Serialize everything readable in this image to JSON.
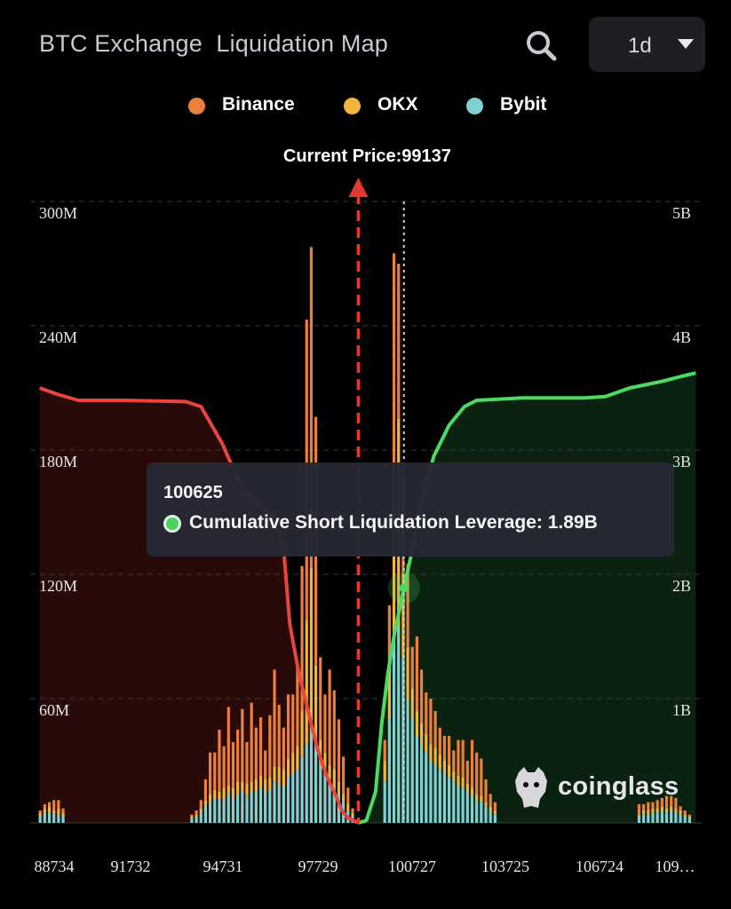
{
  "header": {
    "title": "BTC Exchange  Liquidation Map",
    "time_range": "1d"
  },
  "icons": {
    "search": "search-icon",
    "dropdown": "chevron-down-icon",
    "watermark_logo": "coinglass-logo-icon"
  },
  "legend": [
    {
      "label": "Binance",
      "color": "#ec7f3c"
    },
    {
      "label": "OKX",
      "color": "#f2b63c"
    },
    {
      "label": "Bybit",
      "color": "#7fd1d4"
    }
  ],
  "current_price_label": "Current Price:99137",
  "tooltip": {
    "title": "100625",
    "label": "Cumulative Short Liquidation Leverage: 1.89B",
    "color": "#4cd964"
  },
  "watermark": "coinglass",
  "chart_data": {
    "type": "bar",
    "title": "BTC Exchange  Liquidation Map",
    "x_tick_labels": [
      "88734",
      "91732",
      "94731",
      "97729",
      "100727",
      "103725",
      "106724",
      "109…"
    ],
    "xlim": [
      88600,
      110200
    ],
    "y_left": {
      "ticks": [
        "60M",
        "120M",
        "180M",
        "240M",
        "300M"
      ],
      "range": [
        0,
        300000000
      ]
    },
    "y_right": {
      "ticks": [
        "1B",
        "2B",
        "3B",
        "4B",
        "5B"
      ],
      "range": [
        0,
        5000000000
      ]
    },
    "grid": "horizontal dashed",
    "current_price": 99137,
    "hover_price": 100625,
    "bars": {
      "series_order": [
        "Bybit",
        "OKX",
        "Binance"
      ],
      "points": [
        [
          88750,
          3,
          2,
          1
        ],
        [
          88900,
          5,
          2,
          2
        ],
        [
          89050,
          5,
          3,
          2
        ],
        [
          89200,
          4,
          2,
          5
        ],
        [
          89350,
          4,
          3,
          4
        ],
        [
          89500,
          3,
          2,
          2
        ],
        [
          93700,
          2,
          1,
          1
        ],
        [
          93850,
          3,
          1,
          2
        ],
        [
          94000,
          5,
          2,
          4
        ],
        [
          94150,
          8,
          3,
          10
        ],
        [
          94300,
          10,
          4,
          20
        ],
        [
          94450,
          12,
          4,
          18
        ],
        [
          94600,
          11,
          4,
          30
        ],
        [
          94750,
          12,
          5,
          20
        ],
        [
          94900,
          14,
          4,
          38
        ],
        [
          95050,
          12,
          5,
          22
        ],
        [
          95200,
          14,
          6,
          25
        ],
        [
          95350,
          15,
          5,
          35
        ],
        [
          95500,
          13,
          6,
          20
        ],
        [
          95650,
          15,
          5,
          38
        ],
        [
          95800,
          15,
          6,
          25
        ],
        [
          95950,
          17,
          6,
          28
        ],
        [
          96100,
          15,
          6,
          14
        ],
        [
          96250,
          16,
          6,
          30
        ],
        [
          96400,
          20,
          7,
          47
        ],
        [
          96550,
          19,
          8,
          30
        ],
        [
          96700,
          18,
          8,
          20
        ],
        [
          96850,
          22,
          9,
          31
        ],
        [
          97000,
          24,
          10,
          28
        ],
        [
          97150,
          26,
          11,
          38
        ],
        [
          97300,
          32,
          22,
          70
        ],
        [
          97450,
          38,
          60,
          145
        ],
        [
          97600,
          48,
          75,
          155
        ],
        [
          97750,
          40,
          36,
          120
        ],
        [
          97900,
          28,
          12,
          40
        ],
        [
          98050,
          24,
          10,
          28
        ],
        [
          98200,
          20,
          8,
          46
        ],
        [
          98350,
          18,
          8,
          38
        ],
        [
          98500,
          14,
          6,
          30
        ],
        [
          98650,
          10,
          4,
          18
        ],
        [
          98800,
          6,
          3,
          8
        ],
        [
          98950,
          3,
          2,
          2
        ],
        [
          100000,
          20,
          10,
          10
        ],
        [
          100150,
          50,
          25,
          30
        ],
        [
          100300,
          90,
          70,
          115
        ],
        [
          100450,
          95,
          100,
          75
        ],
        [
          100600,
          80,
          40,
          48
        ],
        [
          100750,
          60,
          25,
          40
        ],
        [
          100900,
          50,
          15,
          20
        ],
        [
          101050,
          42,
          12,
          36
        ],
        [
          101200,
          38,
          10,
          26
        ],
        [
          101350,
          34,
          9,
          20
        ],
        [
          101500,
          30,
          8,
          22
        ],
        [
          101650,
          28,
          8,
          18
        ],
        [
          101800,
          26,
          7,
          13
        ],
        [
          101950,
          24,
          6,
          12
        ],
        [
          102100,
          22,
          6,
          14
        ],
        [
          102250,
          20,
          5,
          10
        ],
        [
          102400,
          18,
          5,
          17
        ],
        [
          102550,
          17,
          5,
          18
        ],
        [
          102700,
          15,
          4,
          11
        ],
        [
          102850,
          13,
          4,
          23
        ],
        [
          103000,
          11,
          3,
          20
        ],
        [
          103150,
          10,
          3,
          18
        ],
        [
          103300,
          8,
          2,
          11
        ],
        [
          103450,
          6,
          2,
          6
        ],
        [
          103600,
          4,
          2,
          4
        ],
        [
          108300,
          3,
          1,
          5
        ],
        [
          108450,
          4,
          2,
          3
        ],
        [
          108600,
          4,
          2,
          4
        ],
        [
          108750,
          5,
          2,
          3
        ],
        [
          108900,
          5,
          2,
          4
        ],
        [
          109050,
          6,
          2,
          4
        ],
        [
          109200,
          5,
          2,
          6
        ],
        [
          109350,
          6,
          2,
          5
        ],
        [
          109500,
          5,
          2,
          5
        ],
        [
          109650,
          4,
          2,
          2
        ],
        [
          109800,
          3,
          1,
          2
        ],
        [
          109950,
          2,
          1,
          1
        ]
      ]
    },
    "cumulative_long": [
      [
        88734,
        3.5
      ],
      [
        89300,
        3.45
      ],
      [
        90000,
        3.4
      ],
      [
        91500,
        3.4
      ],
      [
        93500,
        3.39
      ],
      [
        94000,
        3.35
      ],
      [
        94700,
        3.05
      ],
      [
        95000,
        2.88
      ],
      [
        95500,
        2.65
      ],
      [
        96000,
        2.55
      ],
      [
        96400,
        2.45
      ],
      [
        96700,
        2.2
      ],
      [
        96900,
        1.6
      ],
      [
        97200,
        1.2
      ],
      [
        97500,
        0.9
      ],
      [
        97800,
        0.6
      ],
      [
        98100,
        0.38
      ],
      [
        98400,
        0.22
      ],
      [
        98600,
        0.1
      ],
      [
        98800,
        0.04
      ],
      [
        99137,
        0
      ]
    ],
    "cumulative_short": [
      [
        99137,
        0
      ],
      [
        99400,
        0.02
      ],
      [
        99700,
        0.25
      ],
      [
        99900,
        0.8
      ],
      [
        100100,
        1.2
      ],
      [
        100300,
        1.5
      ],
      [
        100625,
        1.89
      ],
      [
        100900,
        2.2
      ],
      [
        101200,
        2.6
      ],
      [
        101600,
        2.95
      ],
      [
        102100,
        3.2
      ],
      [
        102600,
        3.35
      ],
      [
        103000,
        3.4
      ],
      [
        104500,
        3.42
      ],
      [
        106500,
        3.42
      ],
      [
        107200,
        3.43
      ],
      [
        108000,
        3.5
      ],
      [
        109000,
        3.55
      ],
      [
        109800,
        3.6
      ],
      [
        110150,
        3.62
      ]
    ],
    "colors": {
      "binance": "#ec7f3c",
      "okx": "#f2b63c",
      "bybit": "#7fd1d4",
      "long_line": "#e8453c",
      "short_line": "#4cd964",
      "current_price_line": "#e23a2e"
    }
  }
}
